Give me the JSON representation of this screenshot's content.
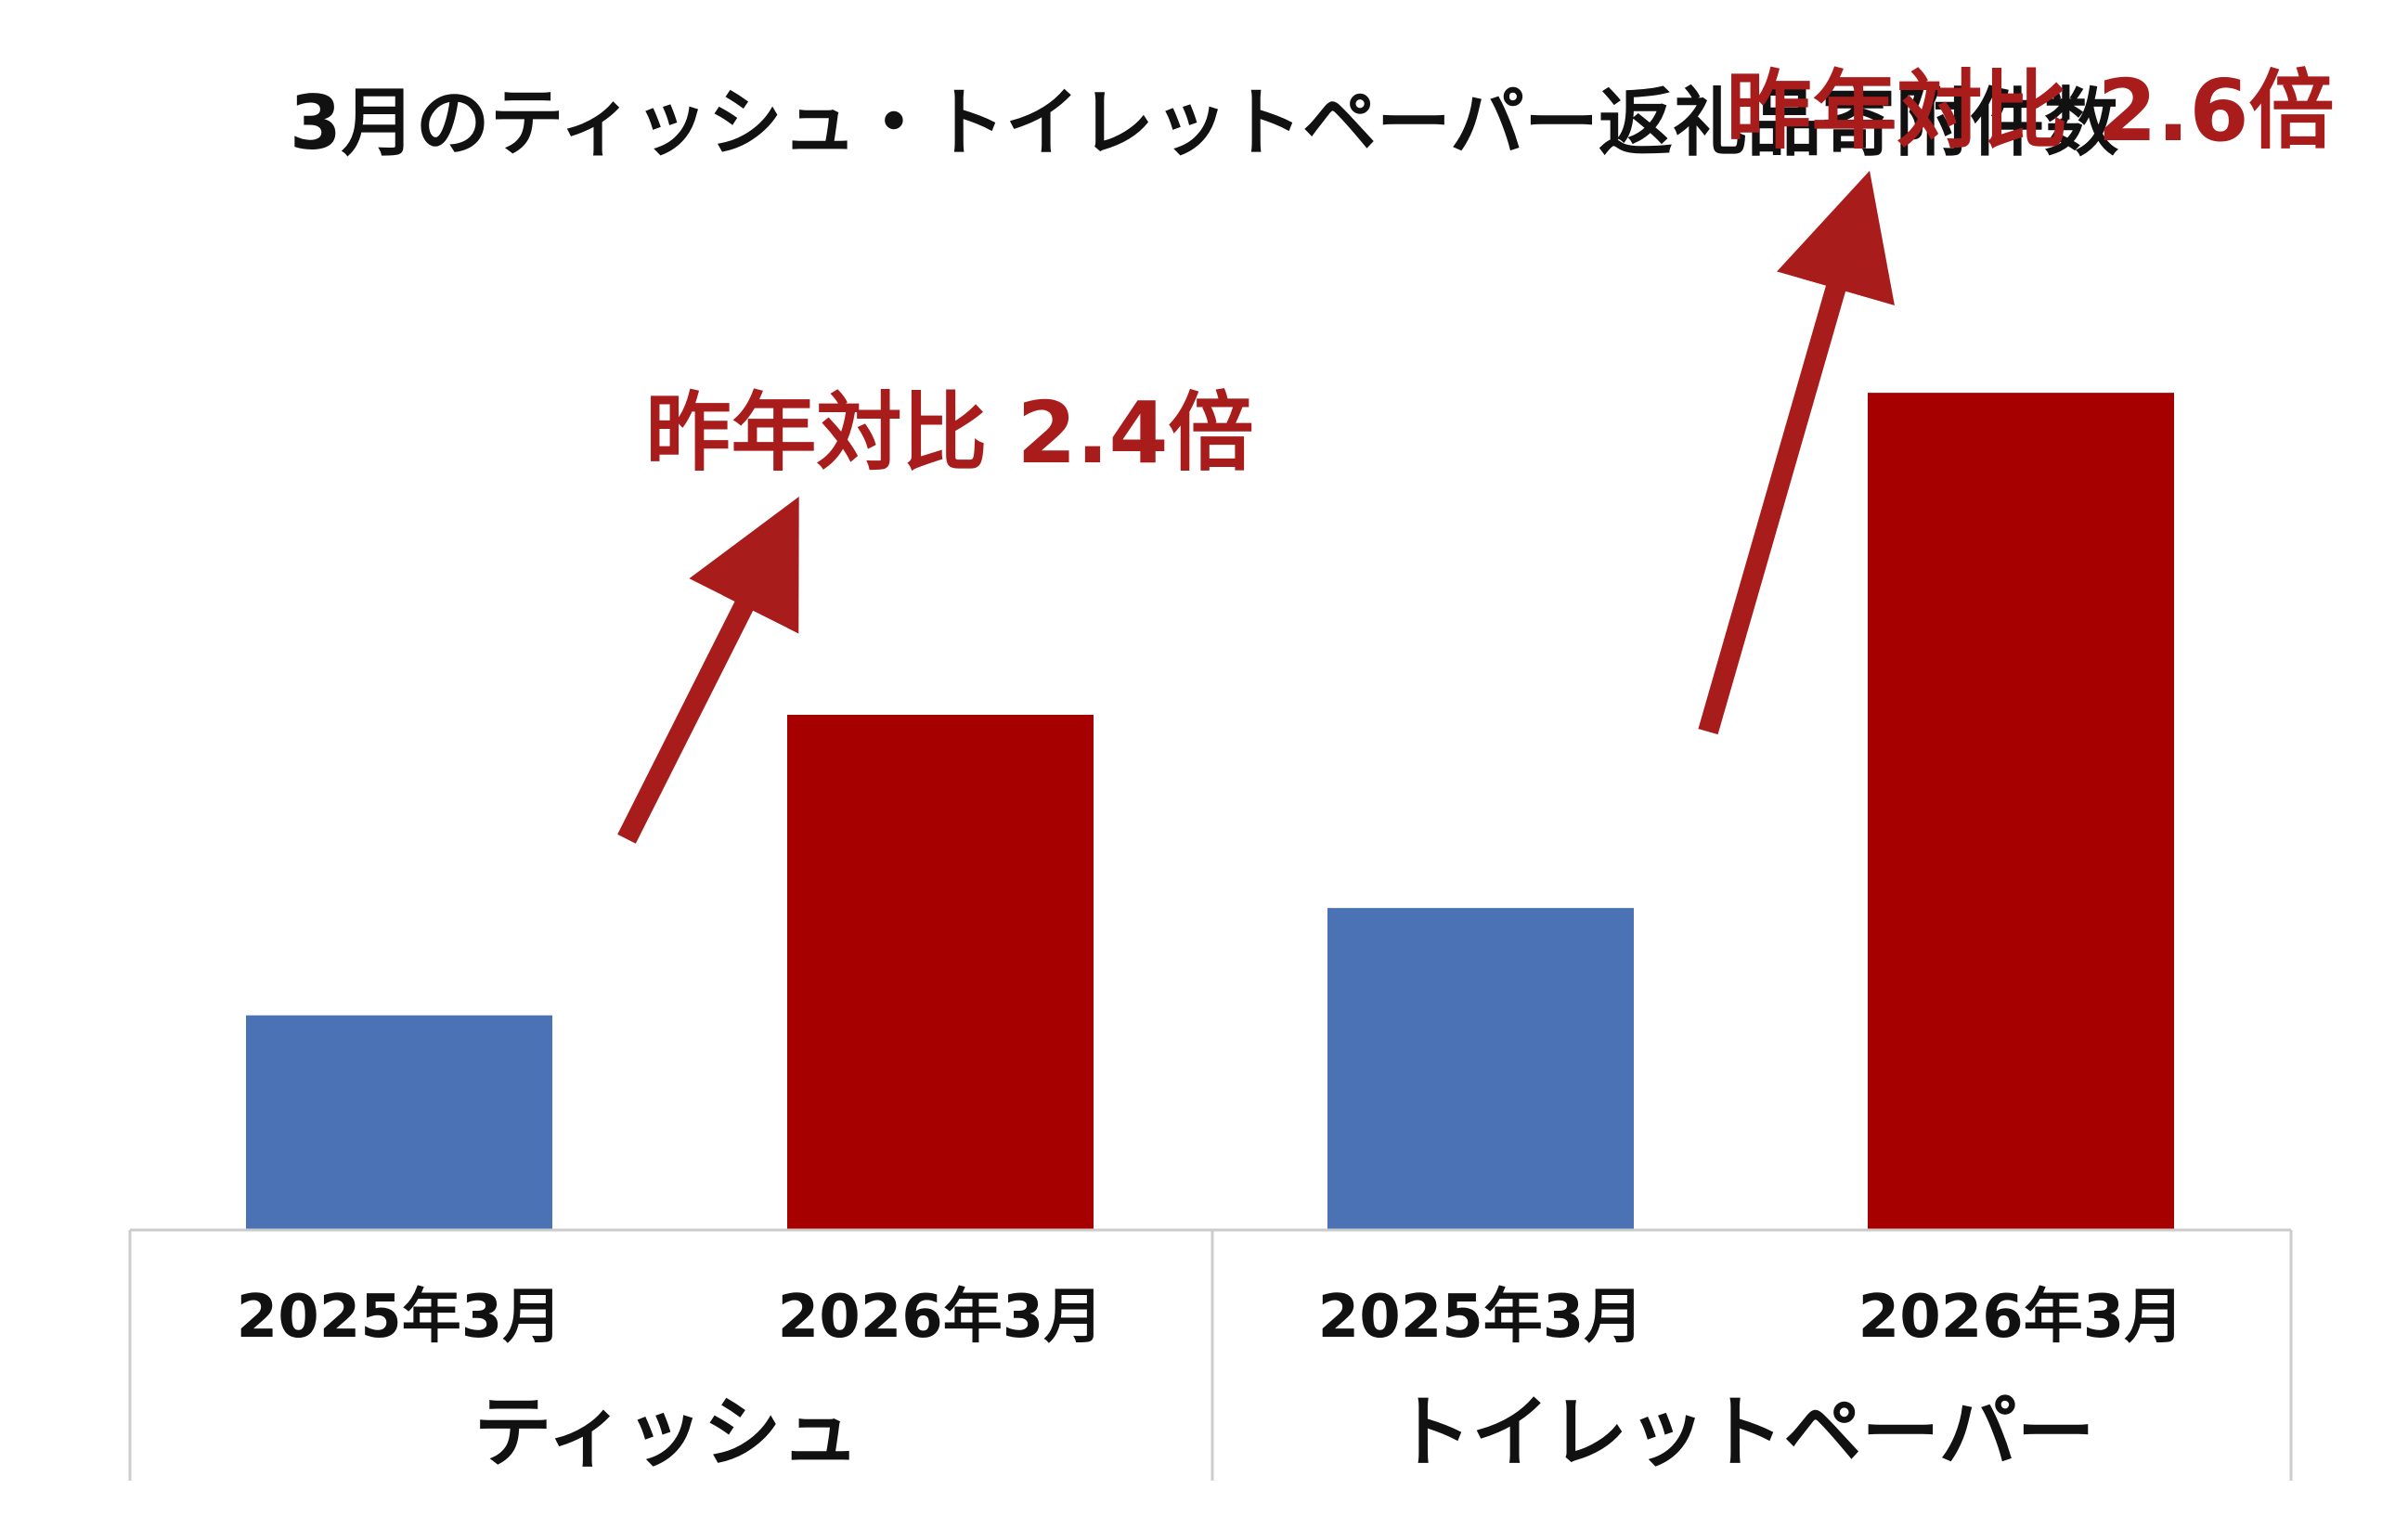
{
  "colors": {
    "bar_2025": "#4a72b4",
    "bar_2026": "#a60000",
    "accent": "#a81c1c",
    "axis_border": "#cccccc",
    "text": "#111111"
  },
  "chart_data": {
    "type": "bar",
    "title": "3月のティッシュ・トイレットペーパー返礼品寄附件数",
    "xlabel": "",
    "ylabel": "",
    "grid": false,
    "legend": "none",
    "groups": [
      {
        "name": "ティッシュ",
        "categories": [
          "2025年3月",
          "2026年3月"
        ],
        "values": [
          1.0,
          2.4
        ],
        "annotation": "昨年対比 2.4倍"
      },
      {
        "name": "トイレットペーパー",
        "categories": [
          "2025年3月",
          "2026年3月"
        ],
        "values": [
          1.5,
          3.9
        ],
        "annotation": "昨年対比 2.6倍"
      }
    ],
    "ylim": [
      0,
      4
    ]
  }
}
